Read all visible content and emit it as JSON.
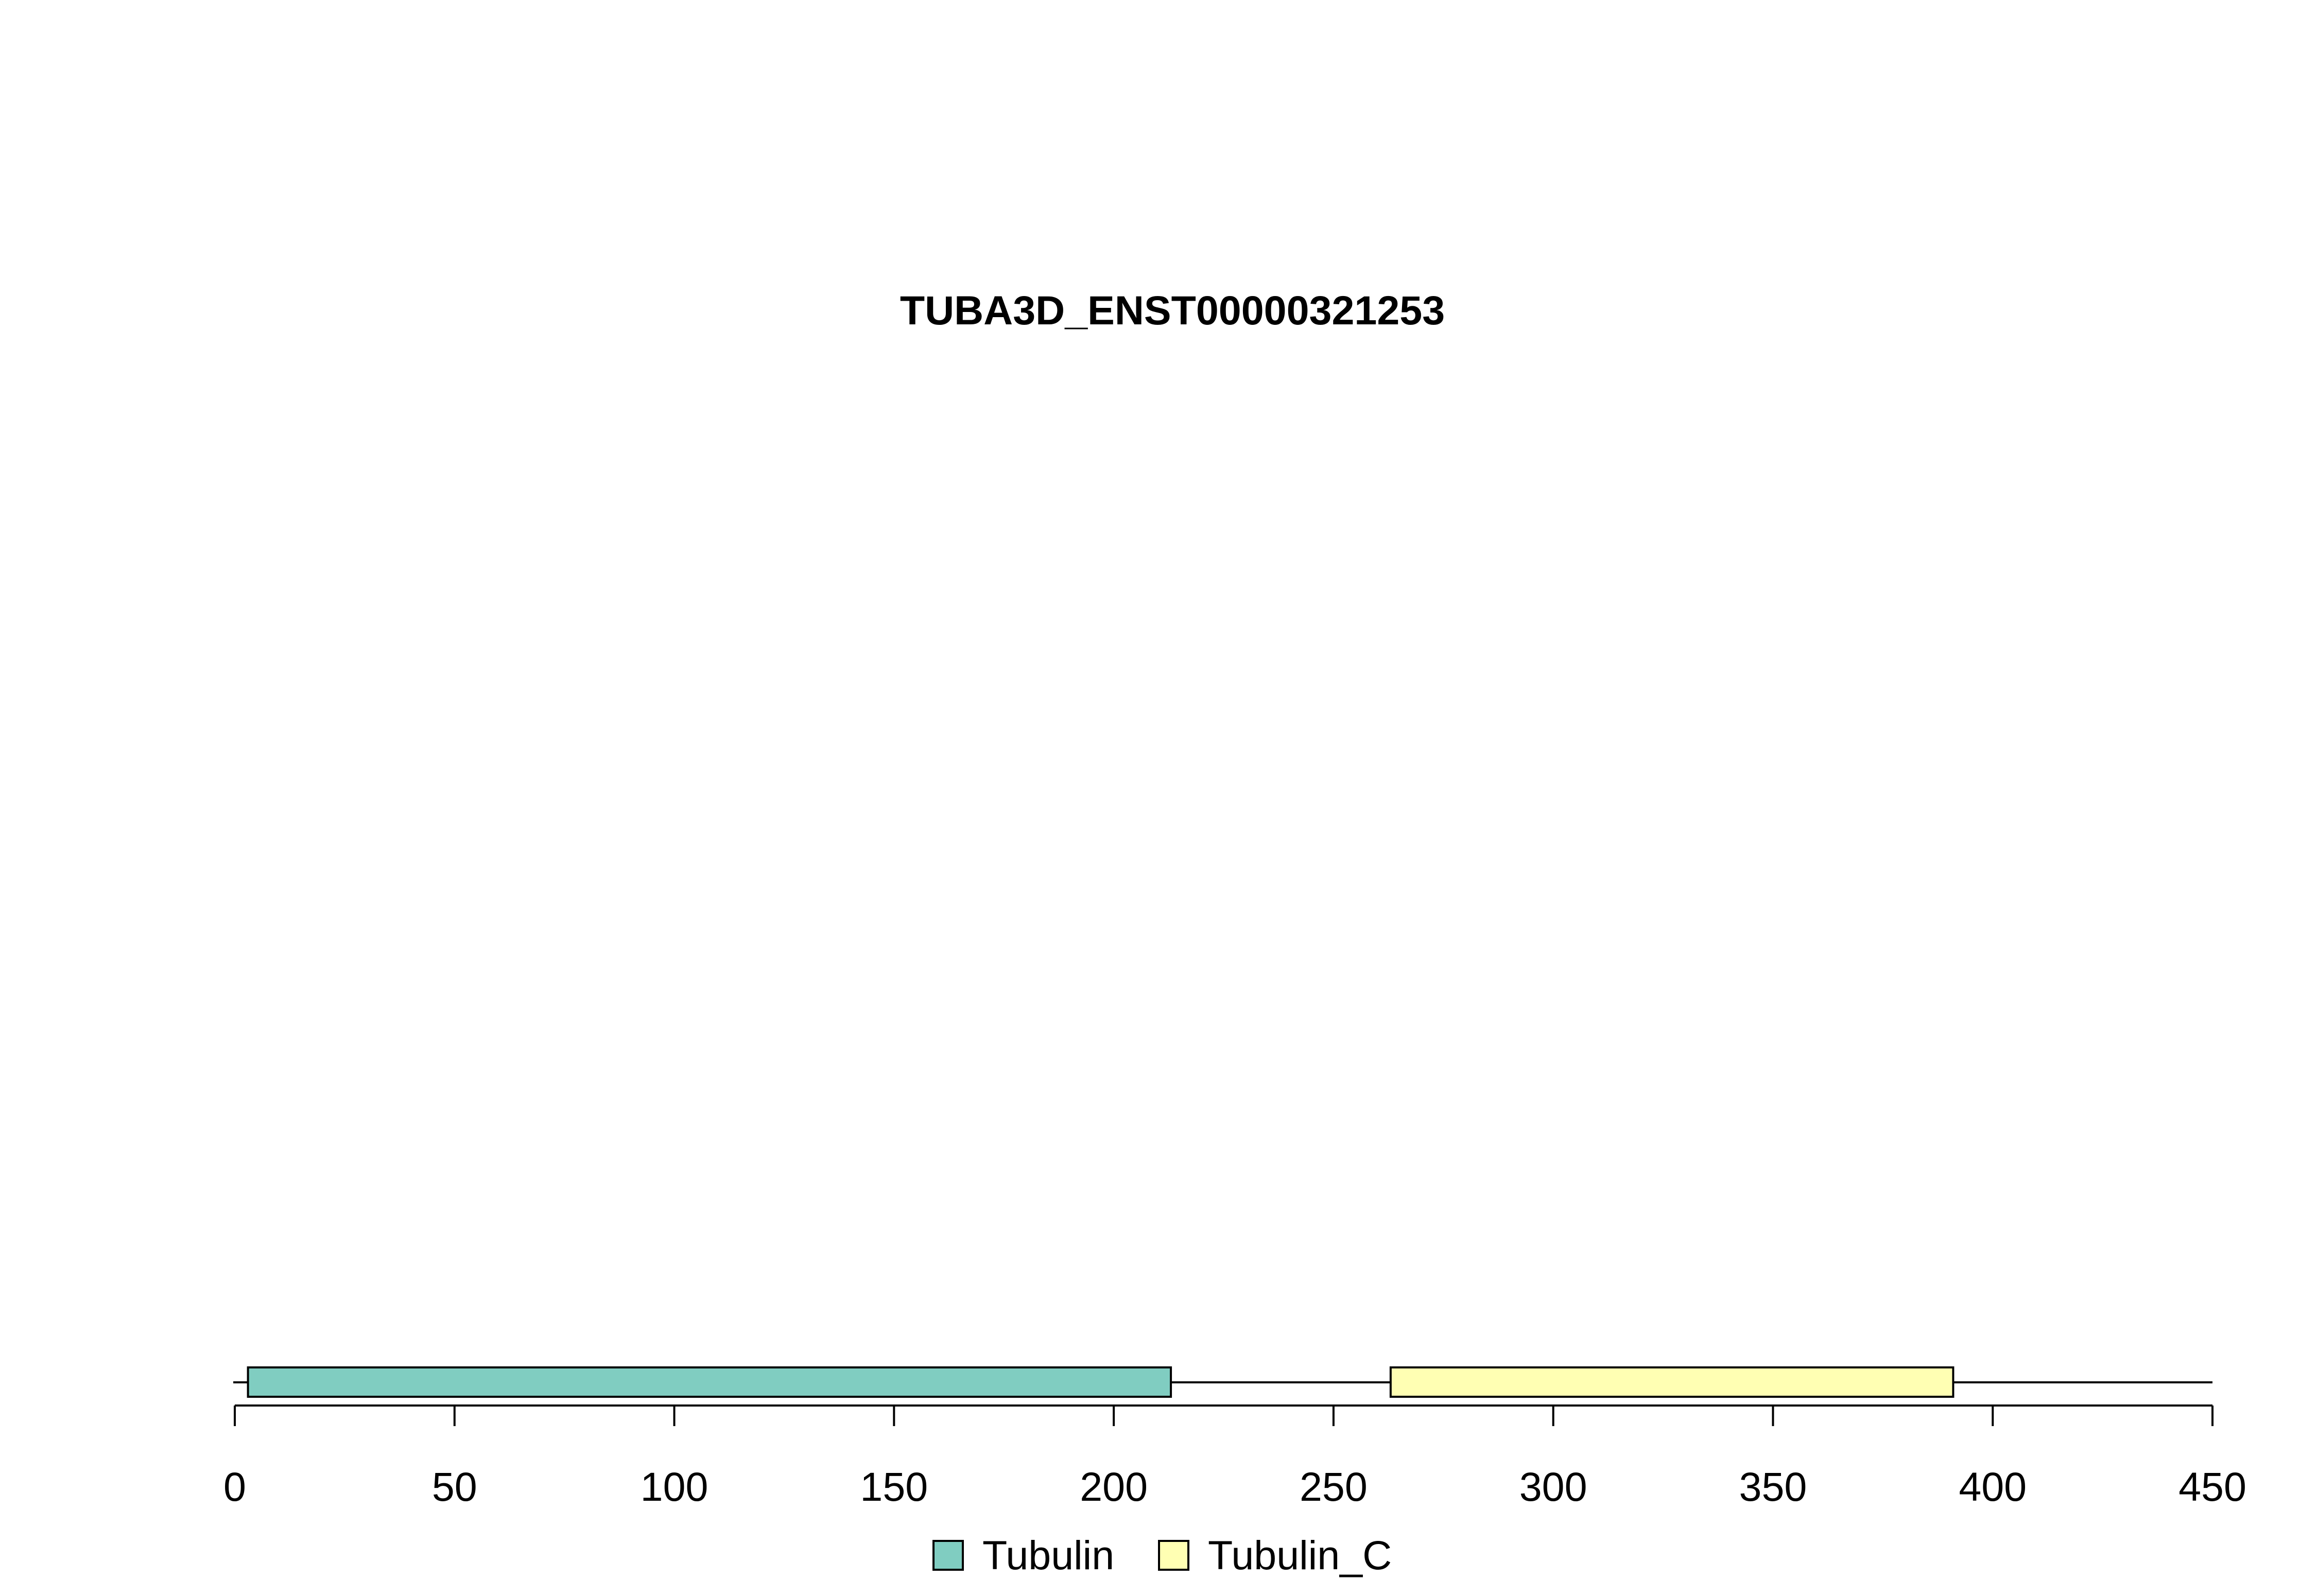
{
  "chart_data": {
    "type": "protein-domain-track",
    "title": "TUBA3D_ENST00000321253",
    "xlim": [
      0,
      450
    ],
    "protein_length": 450,
    "x_ticks": [
      0,
      50,
      100,
      150,
      200,
      250,
      300,
      350,
      400,
      450
    ],
    "tick_labels": [
      "0",
      "50",
      "100",
      "150",
      "200",
      "250",
      "300",
      "350",
      "400",
      "450"
    ],
    "domains": [
      {
        "name": "Tubulin",
        "start": 3,
        "end": 213,
        "color": "#80CDC1"
      },
      {
        "name": "Tubulin_C",
        "start": 263,
        "end": 391,
        "color": "#FFFFB3"
      }
    ],
    "legend": [
      {
        "label": "Tubulin",
        "color": "#80CDC1"
      },
      {
        "label": "Tubulin_C",
        "color": "#FFFFB3"
      }
    ],
    "legend_position": "bottom-center",
    "grid": false
  }
}
